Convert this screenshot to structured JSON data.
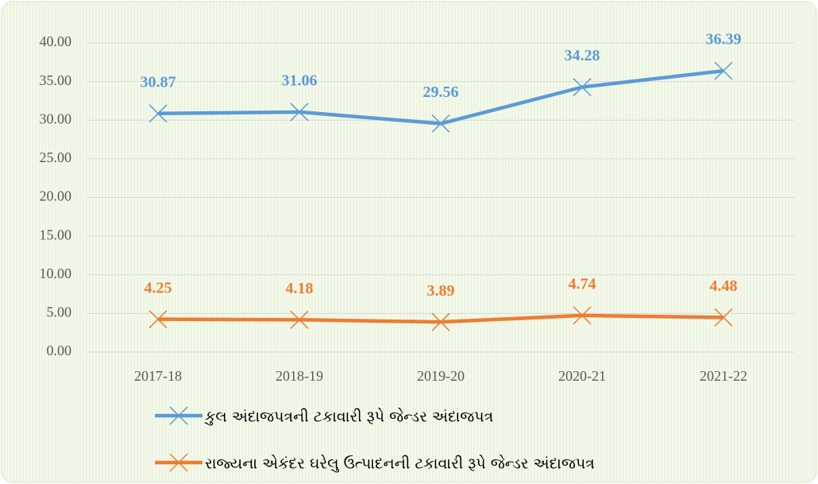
{
  "chart_data": {
    "type": "line",
    "categories": [
      "2017-18",
      "2018-19",
      "2019-20",
      "2020-21",
      "2021-22"
    ],
    "series": [
      {
        "name": "કુલ અંદાજપત્રની ટકાવારી રૂપે જેન્ડર અંદાજપત્ર",
        "color": "#5b9bd5",
        "values": [
          30.87,
          31.06,
          29.56,
          34.28,
          36.39
        ]
      },
      {
        "name": "રાજ્યના એકંદર ઘરેલુ ઉત્પાદનની ટકાવારી રૂપે જેન્ડર અંદાજપત્ર",
        "color": "#ed7d31",
        "values": [
          4.25,
          4.18,
          3.89,
          4.74,
          4.48
        ]
      }
    ],
    "ylim": [
      0,
      40
    ],
    "yticks": [
      {
        "value": 0,
        "label": "0.00"
      },
      {
        "value": 5,
        "label": "5.00"
      },
      {
        "value": 10,
        "label": "10.00"
      },
      {
        "value": 15,
        "label": "15.00"
      },
      {
        "value": 20,
        "label": "20.00"
      },
      {
        "value": 25,
        "label": "25.00"
      },
      {
        "value": 30,
        "label": "30.00"
      },
      {
        "value": 35,
        "label": "35.00"
      },
      {
        "value": 40,
        "label": "40.00"
      }
    ],
    "grid": true,
    "legend": "bottom"
  }
}
